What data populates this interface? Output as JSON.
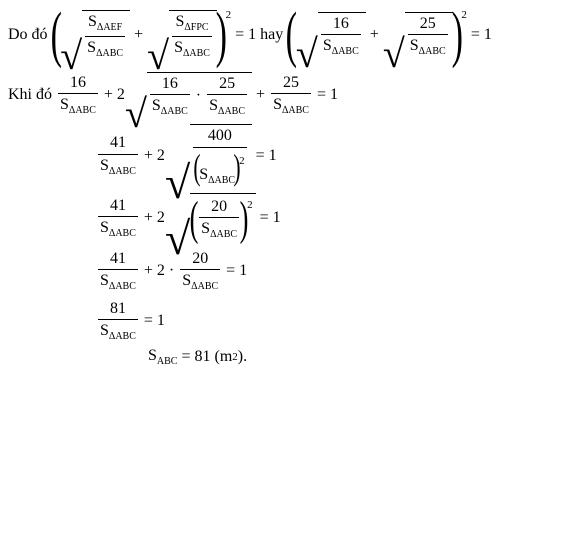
{
  "style": {
    "font_family": "Times New Roman",
    "font_size_pt": 12,
    "text_color": "#000000",
    "background_color": "#ffffff"
  },
  "tokens": {
    "S_AEF": "S",
    "S_AEF_sub": "ΔAEF",
    "S_ABC": "S",
    "S_ABC_sub": "ΔABC",
    "S_FPC": "S",
    "S_FPC_sub": "ΔFPC",
    "S_ABC_plain": "S",
    "S_ABC_plain_sub": "ABC"
  },
  "line1": {
    "lead": "Do đó ",
    "exp": "2",
    "eq1": " = 1",
    "mid": " hay ",
    "v16": "16",
    "v25": "25",
    "eq2": " = 1"
  },
  "line2": {
    "lead": "Khi đó ",
    "v16": "16",
    "plus1": " + 2",
    "dot": " · ",
    "v25": "25",
    "plus2": " + ",
    "eq": " = 1"
  },
  "line3": {
    "v41": "41",
    "plus": " + 2",
    "v400": "400",
    "exp": "2",
    "eq": " = 1"
  },
  "line4": {
    "v41": "41",
    "plus": " + 2",
    "v20": "20",
    "exp": "2",
    "eq": " = 1"
  },
  "line5": {
    "v41": "41",
    "plus": " + 2 · ",
    "v20": "20",
    "eq": " = 1"
  },
  "line6": {
    "v81": "81",
    "eq": " = 1"
  },
  "line7": {
    "eq": " = 81 (m",
    "exp": "2",
    "close": ")."
  }
}
